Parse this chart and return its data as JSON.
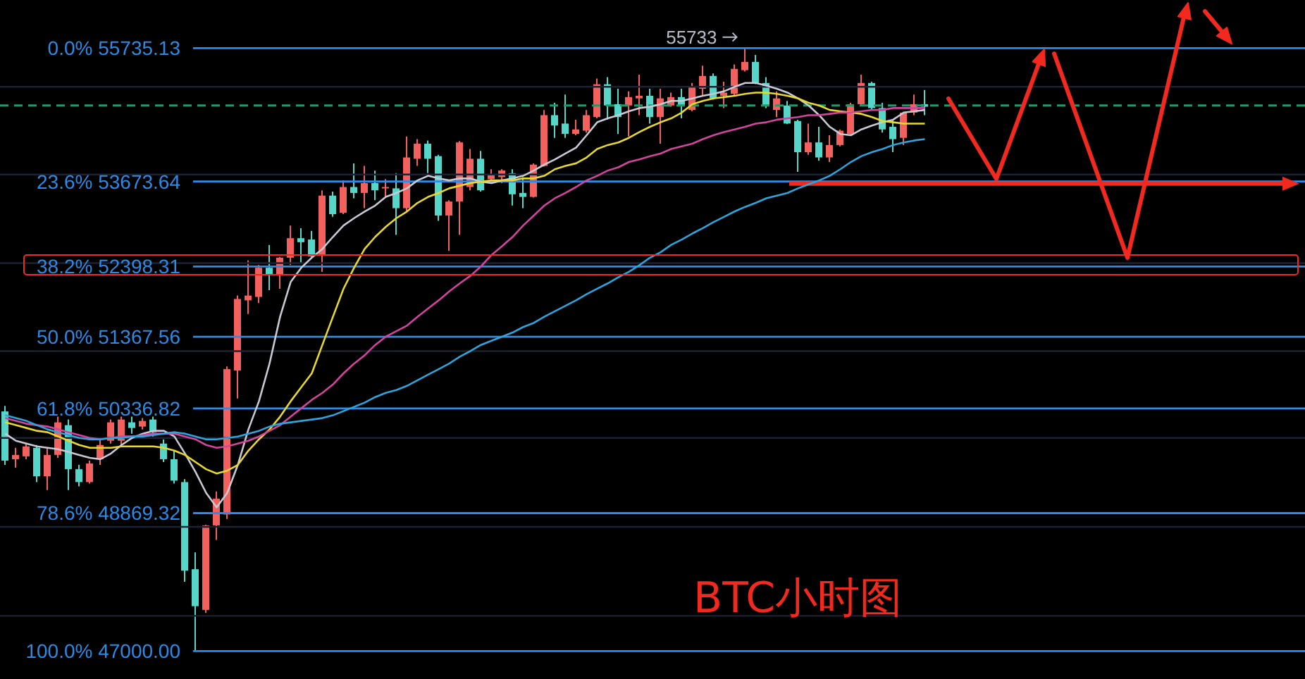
{
  "chart_data": {
    "type": "candlestick",
    "title": "BTC小时图",
    "categories": [
      null,
      null,
      null,
      null,
      null,
      null,
      null,
      null,
      null,
      null,
      null,
      null,
      null,
      null,
      null,
      null,
      null,
      null,
      null,
      null,
      null,
      null,
      null,
      null,
      null,
      null,
      null,
      null,
      null,
      null,
      null,
      null,
      null,
      null,
      null,
      null,
      null,
      null,
      null,
      null,
      null,
      null,
      null,
      null,
      null,
      null,
      null,
      null,
      null,
      null,
      null,
      null,
      null,
      null,
      null,
      null,
      null,
      null,
      null,
      null,
      null,
      null,
      null,
      null,
      null,
      null,
      null,
      null,
      null,
      null,
      null,
      null,
      null,
      null,
      null,
      null,
      null,
      null,
      null,
      null,
      null,
      null,
      null,
      null,
      null,
      null,
      null,
      null
    ],
    "ohlc": [
      [
        50295,
        50375,
        49540,
        49600
      ],
      [
        49620,
        49780,
        49500,
        49680
      ],
      [
        49660,
        49840,
        49620,
        49800
      ],
      [
        49780,
        49820,
        49300,
        49380
      ],
      [
        49380,
        49780,
        49190,
        49680
      ],
      [
        49680,
        50220,
        49640,
        50140
      ],
      [
        50100,
        50180,
        49190,
        49480
      ],
      [
        49480,
        49540,
        49240,
        49300
      ],
      [
        49300,
        49600,
        49280,
        49560
      ],
      [
        49620,
        49900,
        49540,
        49820
      ],
      [
        49880,
        50180,
        49840,
        50140
      ],
      [
        49880,
        50220,
        49820,
        50180
      ],
      [
        50140,
        50220,
        49980,
        50060
      ],
      [
        50080,
        50200,
        50040,
        50160
      ],
      [
        50180,
        50220,
        49940,
        50000
      ],
      [
        49840,
        49900,
        49580,
        49620
      ],
      [
        49620,
        49740,
        49280,
        49320
      ],
      [
        49300,
        49340,
        47930,
        48080
      ],
      [
        48100,
        48330,
        47000,
        47600
      ],
      [
        47550,
        48710,
        47510,
        48700
      ],
      [
        48700,
        49170,
        48500,
        49070
      ],
      [
        48850,
        50940,
        48790,
        50900
      ],
      [
        50880,
        51970,
        50480,
        51920
      ],
      [
        51900,
        52490,
        51700,
        51970
      ],
      [
        51950,
        52420,
        51860,
        52380
      ],
      [
        52380,
        52720,
        52050,
        52280
      ],
      [
        52280,
        52540,
        52070,
        52530
      ],
      [
        52530,
        53010,
        52420,
        52820
      ],
      [
        52820,
        52970,
        52450,
        52760
      ],
      [
        52800,
        52930,
        52540,
        52550
      ],
      [
        52570,
        53540,
        52320,
        53460
      ],
      [
        53460,
        53520,
        53140,
        53180
      ],
      [
        53200,
        53690,
        53180,
        53590
      ],
      [
        53590,
        53950,
        53420,
        53500
      ],
      [
        53500,
        53910,
        53270,
        53650
      ],
      [
        53650,
        53840,
        53390,
        53540
      ],
      [
        53570,
        53710,
        53440,
        53590
      ],
      [
        53570,
        53800,
        52870,
        53270
      ],
      [
        53270,
        54360,
        53220,
        54040
      ],
      [
        54020,
        54320,
        53910,
        54250
      ],
      [
        54250,
        54300,
        53800,
        54020
      ],
      [
        54060,
        54080,
        53080,
        53160
      ],
      [
        53160,
        53390,
        52630,
        53370
      ],
      [
        53370,
        54290,
        52870,
        54270
      ],
      [
        53590,
        54170,
        53540,
        54020
      ],
      [
        54020,
        54140,
        53520,
        53540
      ],
      [
        53710,
        53860,
        53690,
        53780
      ],
      [
        53740,
        53860,
        53650,
        53840
      ],
      [
        53800,
        53860,
        53310,
        53480
      ],
      [
        53500,
        53740,
        53270,
        53440
      ],
      [
        53440,
        53950,
        53430,
        53930
      ],
      [
        53910,
        54770,
        53900,
        54690
      ],
      [
        54690,
        54880,
        54340,
        54530
      ],
      [
        54560,
        55010,
        54340,
        54400
      ],
      [
        54400,
        54620,
        54380,
        54470
      ],
      [
        54450,
        54770,
        54420,
        54690
      ],
      [
        54660,
        55260,
        54640,
        55170
      ],
      [
        55170,
        55280,
        54620,
        54840
      ],
      [
        54860,
        55100,
        54400,
        54660
      ],
      [
        54840,
        55060,
        54360,
        54970
      ],
      [
        54950,
        55320,
        54690,
        54990
      ],
      [
        54990,
        55100,
        54560,
        54660
      ],
      [
        54660,
        55100,
        54250,
        54950
      ],
      [
        54840,
        55040,
        54820,
        54970
      ],
      [
        54970,
        55100,
        54640,
        54840
      ],
      [
        54770,
        55190,
        54750,
        55130
      ],
      [
        55100,
        55460,
        54990,
        55300
      ],
      [
        55300,
        55340,
        54930,
        54950
      ],
      [
        54990,
        55210,
        54800,
        55040
      ],
      [
        55020,
        55480,
        54990,
        55410
      ],
      [
        55390,
        55733,
        55370,
        55520
      ],
      [
        55520,
        55630,
        55170,
        55190
      ],
      [
        55190,
        55280,
        54800,
        54840
      ],
      [
        54770,
        55060,
        54660,
        54950
      ],
      [
        54840,
        54910,
        54550,
        54560
      ],
      [
        54600,
        54620,
        53820,
        54120
      ],
      [
        54120,
        54560,
        54080,
        54270
      ],
      [
        54270,
        54510,
        53990,
        54040
      ],
      [
        54040,
        54380,
        53970,
        54230
      ],
      [
        54230,
        54470,
        54210,
        54450
      ],
      [
        54400,
        54880,
        54380,
        54860
      ],
      [
        54860,
        55320,
        54840,
        55190
      ],
      [
        55190,
        55210,
        54780,
        54800
      ],
      [
        54800,
        54880,
        54420,
        54470
      ],
      [
        54510,
        54620,
        54120,
        54320
      ],
      [
        54340,
        54740,
        54230,
        54730
      ],
      [
        54730,
        55010,
        54690,
        54860
      ],
      [
        54860,
        55080,
        54690,
        54820
      ]
    ],
    "colors": [
      "#55d6c9",
      "#f2615e",
      "#f2615e",
      "#55d6c9",
      "#f2615e",
      "#f2615e",
      "#55d6c9",
      "#55d6c9",
      "#f2615e",
      "#f2615e",
      "#f2615e",
      "#f2615e",
      "#55d6c9",
      "#f2615e",
      "#55d6c9",
      "#55d6c9",
      "#55d6c9",
      "#55d6c9",
      "#55d6c9",
      "#f2615e",
      "#f2615e",
      "#f2615e",
      "#f2615e",
      "#f2615e",
      "#f2615e",
      "#55d6c9",
      "#f2615e",
      "#f2615e",
      "#55d6c9",
      "#55d6c9",
      "#f2615e",
      "#55d6c9",
      "#f2615e",
      "#55d6c9",
      "#f2615e",
      "#55d6c9",
      "#f2615e",
      "#55d6c9",
      "#f2615e",
      "#f2615e",
      "#55d6c9",
      "#55d6c9",
      "#f2615e",
      "#f2615e",
      "#f2615e",
      "#55d6c9",
      "#f2615e",
      "#f2615e",
      "#55d6c9",
      "#55d6c9",
      "#f2615e",
      "#f2615e",
      "#55d6c9",
      "#55d6c9",
      "#f2615e",
      "#f2615e",
      "#f2615e",
      "#55d6c9",
      "#55d6c9",
      "#f2615e",
      "#f2615e",
      "#55d6c9",
      "#f2615e",
      "#f2615e",
      "#55d6c9",
      "#f2615e",
      "#f2615e",
      "#55d6c9",
      "#f2615e",
      "#f2615e",
      "#f2615e",
      "#55d6c9",
      "#55d6c9",
      "#f2615e",
      "#55d6c9",
      "#55d6c9",
      "#f2615e",
      "#55d6c9",
      "#f2615e",
      "#f2615e",
      "#f2615e",
      "#f2615e",
      "#55d6c9",
      "#55d6c9",
      "#55d6c9",
      "#f2615e",
      "#f2615e",
      "#55d6c9"
    ],
    "series": [
      {
        "type": "line",
        "color": "#c9c9d6",
        "values": [
          49980,
          49880,
          49840,
          49800,
          49780,
          49760,
          49720,
          49680,
          49640,
          49620,
          49700,
          49820,
          49920,
          49980,
          50020,
          50020,
          49940,
          49700,
          49440,
          49150,
          48950,
          49150,
          49540,
          50040,
          50440,
          50980,
          51660,
          52170,
          52380,
          52530,
          52660,
          52840,
          53010,
          53120,
          53220,
          53310,
          53440,
          53500,
          53570,
          53690,
          53760,
          53720,
          53690,
          53720,
          53720,
          53670,
          53650,
          53690,
          53720,
          53760,
          53840,
          53930,
          54010,
          54100,
          54190,
          54380,
          54580,
          54640,
          54690,
          54750,
          54800,
          54820,
          54860,
          54910,
          54910,
          54950,
          54990,
          55020,
          55060,
          55130,
          55190,
          55190,
          55150,
          55100,
          55040,
          54950,
          54840,
          54690,
          54510,
          54400,
          54380,
          54470,
          54530,
          54580,
          54620,
          54730,
          54750,
          54770
        ]
      },
      {
        "type": "line",
        "color": "#e8d82c",
        "values": [
          50140,
          50100,
          50060,
          50020,
          50000,
          49940,
          49880,
          49820,
          49780,
          49780,
          49780,
          49800,
          49800,
          49800,
          49800,
          49780,
          49740,
          49680,
          49580,
          49480,
          49420,
          49460,
          49540,
          49740,
          49900,
          50040,
          50220,
          50440,
          50640,
          50840,
          51250,
          51660,
          52070,
          52380,
          52660,
          52840,
          52990,
          53120,
          53220,
          53350,
          53440,
          53500,
          53570,
          53610,
          53650,
          53670,
          53690,
          53690,
          53690,
          53720,
          53720,
          53760,
          53860,
          53910,
          53950,
          54040,
          54170,
          54230,
          54270,
          54340,
          54430,
          54510,
          54580,
          54640,
          54730,
          54860,
          54910,
          54950,
          54970,
          54990,
          55020,
          55040,
          55040,
          55020,
          54990,
          54950,
          54880,
          54840,
          54770,
          54750,
          54730,
          54710,
          54660,
          54600,
          54580,
          54560,
          54560,
          54560
        ]
      },
      {
        "type": "line",
        "color": "#d2449e",
        "values": [
          50200,
          50160,
          50120,
          50100,
          50080,
          50040,
          50000,
          49960,
          49920,
          49900,
          49920,
          49940,
          49940,
          49960,
          49980,
          49980,
          49980,
          49940,
          49900,
          49820,
          49780,
          49800,
          49840,
          49880,
          49940,
          50020,
          50100,
          50220,
          50340,
          50460,
          50560,
          50680,
          50840,
          50980,
          51100,
          51250,
          51370,
          51450,
          51530,
          51660,
          51780,
          51900,
          52030,
          52150,
          52260,
          52400,
          52570,
          52700,
          52840,
          53010,
          53160,
          53310,
          53420,
          53500,
          53590,
          53690,
          53760,
          53840,
          53890,
          53970,
          54010,
          54060,
          54100,
          54170,
          54210,
          54250,
          54320,
          54380,
          54430,
          54470,
          54510,
          54560,
          54580,
          54620,
          54640,
          54660,
          54690,
          54690,
          54710,
          54730,
          54730,
          54750,
          54770,
          54770,
          54800,
          54800,
          54800,
          54800
        ]
      },
      {
        "type": "line",
        "color": "#2ea3dc",
        "values": [
          50240,
          50200,
          50160,
          50100,
          50040,
          50000,
          49960,
          49920,
          49900,
          49900,
          49920,
          49920,
          49940,
          49940,
          49960,
          49980,
          50000,
          49980,
          49940,
          49900,
          49900,
          49920,
          49940,
          49980,
          50020,
          50080,
          50120,
          50140,
          50160,
          50180,
          50200,
          50240,
          50300,
          50360,
          50420,
          50500,
          50560,
          50600,
          50660,
          50740,
          50820,
          50900,
          50980,
          51080,
          51160,
          51250,
          51310,
          51370,
          51430,
          51510,
          51570,
          51660,
          51740,
          51820,
          51900,
          51990,
          52070,
          52150,
          52240,
          52320,
          52420,
          52530,
          52610,
          52720,
          52800,
          52890,
          52970,
          53060,
          53140,
          53220,
          53290,
          53350,
          53420,
          53460,
          53500,
          53570,
          53630,
          53690,
          53760,
          53860,
          53970,
          54060,
          54120,
          54170,
          54230,
          54270,
          54300,
          54320
        ]
      }
    ],
    "ylim": [
      46630,
      56500
    ],
    "log": true,
    "grid": "y",
    "yticks": [
      {
        "value": 55130,
        "label": null
      },
      {
        "value": 53780,
        "label": null
      },
      {
        "value": 52450,
        "label": null
      },
      {
        "value": 51160,
        "label": null
      },
      {
        "value": 49920,
        "label": null
      },
      {
        "value": 48680,
        "label": null
      },
      {
        "value": 47470,
        "label": null
      }
    ],
    "ref_lines": [
      {
        "axis": "y",
        "value": 55735.13,
        "label": "0.0% 55735.13",
        "color": "#2c8be6"
      },
      {
        "axis": "y",
        "value": 53673.64,
        "label": "23.6% 53673.64",
        "color": "#2c8be6"
      },
      {
        "axis": "y",
        "value": 52398.31,
        "label": "38.2% 52398.31",
        "color": "#2c8be6"
      },
      {
        "axis": "y",
        "value": 51367.56,
        "label": "50.0% 51367.56",
        "color": "#2c8be6"
      },
      {
        "axis": "y",
        "value": 50336.82,
        "label": "61.8% 50336.82",
        "color": "#2c8be6"
      },
      {
        "axis": "y",
        "value": 48869.32,
        "label": "78.6% 48869.32",
        "color": "#2c8be6"
      },
      {
        "axis": "y",
        "value": 47000,
        "label": "100.0% 47000.00",
        "color": "#2c8be6"
      },
      {
        "axis": "y",
        "value": 54840,
        "color": "#1d9a6c",
        "line_style": "dashed"
      },
      {
        "axis": "y",
        "value": 53640,
        "color": "#f2291e",
        "line_style": "solid"
      }
    ],
    "annotations": [
      {
        "text": "55733",
        "y": 55733
      }
    ]
  }
}
